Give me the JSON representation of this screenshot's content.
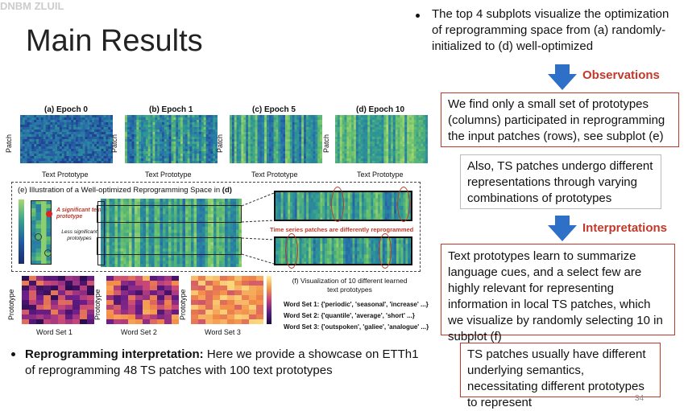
{
  "watermark": "DNBM ZLUIL",
  "title": "Main Results",
  "top_subplots": {
    "a_label": "(a) Epoch 0",
    "b_label": "(b) Epoch 1",
    "c_label": "(c) Epoch 5",
    "d_label": "(d) Epoch 10",
    "x_label": "Text Prototype",
    "y_label": "Patch"
  },
  "panel_e": {
    "title_prefix": "(e) Illustration of a Well-optimized Reprogramming Space in ",
    "title_suffix": "(d)",
    "significant": "A significant text prototype",
    "less_significant": "Less significant prototypes",
    "caption": "Time series patches are differently reprogrammed"
  },
  "bottom_subplots": {
    "y_label": "Prototype",
    "set1": "Word Set 1",
    "set2": "Word Set 2",
    "set3": "Word Set 3"
  },
  "panel_f": {
    "title_line1": "(f) Visualization of 10 different learned",
    "title_line2": "text prototypes",
    "word_set_1": "Word Set 1: {'periodic', 'seasonal', 'increase' ...}",
    "word_set_2": "Word Set 2: {'quantile', 'average', 'short' ...}",
    "word_set_3": "Word Set 3: {'outspoken', 'galiee', 'analogue' ...}"
  },
  "bottom_bullet": {
    "bold": "Reprogramming interpretation:",
    "text": " Here we provide a showcase on ETTh1 of reprogramming 48 TS patches with 100 text prototypes"
  },
  "right": {
    "intro": "The top 4 subplots visualize the optimization of reprogramming space from (a) randomly-initialized to (d) well-optimized",
    "observations_label": "Observations",
    "obs_box1": "We find only a small set of prototypes (columns) participated in reprogramming the input patches (rows), see subplot (e)",
    "obs_box2": "Also, TS patches undergo different representations through varying combinations of prototypes",
    "interpretations_label": "Interpretations",
    "int_box1": "Text prototypes learn to summarize language cues, and a select few are highly relevant for representing information in local TS patches, which we visualize by randomly selecting 10 in subplot (f)",
    "int_box2": "TS patches usually have different underlying semantics, necessitating different prototypes to represent"
  },
  "page_number": "34",
  "colors": {
    "accent_red": "#c0392b",
    "arrow_blue": "#2e6fc7",
    "heatmap_low": "#1f3f8f",
    "heatmap_high": "#a8d870"
  }
}
